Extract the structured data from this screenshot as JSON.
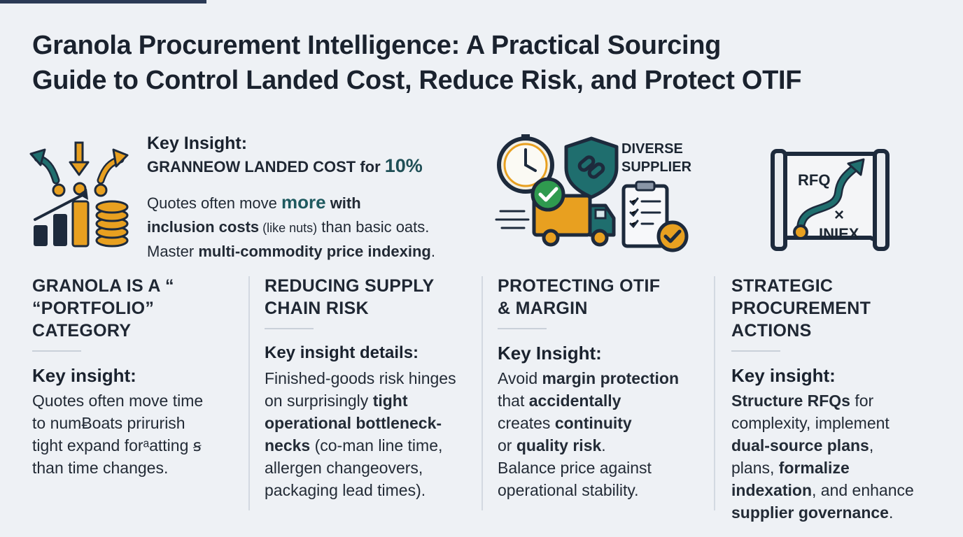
{
  "title": {
    "line1": "Granola Procurement Intelligence: A Practical Sourcing",
    "line2": "Guide to Control Landed Cost, Reduce Risk, and Protect OTIF"
  },
  "hero": {
    "heading": "Key Insight:",
    "sub_prefix": "GRANNEOW LANDED COST for ",
    "sub_pct": "10%",
    "body": {
      "p1": "Quotes often move ",
      "p1_accent": "more",
      "p1_bold": " with",
      "p2_bold": "inclusion costs",
      "p2_small": " (like nuts)",
      "p2_rest": " than basic oats.",
      "p3": "Master ",
      "p3_bold": "multi-commodity price indexing",
      "p3_end": "."
    },
    "icon": "cost-growth-icon"
  },
  "mid_graphic": {
    "label_line1": "DIVERSE",
    "label_line2": "SUPPLIER",
    "icons": [
      "clock-icon",
      "shield-link-icon",
      "delivery-truck-icon",
      "checklist-icon",
      "checkmark-icon"
    ]
  },
  "rfq_graphic": {
    "label_top": "RFQ",
    "label_x": "×",
    "label_bottom": "INIEX",
    "icon": "rfq-roadmap-icon"
  },
  "columns": [
    {
      "heading_line1": "GRANOLA IS A “",
      "heading_line2": "“PORTFOLIO” CATEGORY",
      "sub": "Key insight:",
      "lines": [
        "Quotes often move time",
        "to numɃoats prirurish",
        "tight expand forᵃatting ꞩ",
        "than time changes."
      ]
    },
    {
      "heading_line1": "REDUCING SUPPLY",
      "heading_line2": "CHAIN RISK",
      "sub": "Key insight details:",
      "t1": "Finished-goods risk hinges",
      "t2": "on surprisingly ",
      "t2b": "tight",
      "t3b": "operational bottleneck-",
      "t4b": "necks",
      "t4": " (co-man line time,",
      "t5": "allergen changeovers,",
      "t6": "packaging lead times)."
    },
    {
      "heading_line1": "PROTECTING OTIF",
      "heading_line2": "& MARGIN",
      "sub": "Key Insight:",
      "t1": "Avoid ",
      "t1b": "margin protection",
      "t2": "that ",
      "t2b": "accidentally",
      "t3": "creates ",
      "t3b": "continuity",
      "t4": "or ",
      "t4b": "quality risk",
      "t4e": ".",
      "t5": "Balance price against",
      "t6": "operational stability."
    },
    {
      "heading_line1": "STRATEGIC",
      "heading_line2": "PROCUREMENT ACTIONS",
      "sub": "Key insight:",
      "t1b": "Structure RFQs",
      "t1": " for",
      "t2": "complexity, implement",
      "t3b": "dual-source plans",
      "t3": ",",
      "t4": "plans, ",
      "t4b": "formalize",
      "t5b": "indexation",
      "t5": ", and enhance",
      "t6b": "supplier governance",
      "t6": "."
    }
  ],
  "colors": {
    "teal": "#1f6e6e",
    "amber": "#e8a020",
    "navy": "#1d2a3c",
    "green": "#2f9a4f"
  }
}
